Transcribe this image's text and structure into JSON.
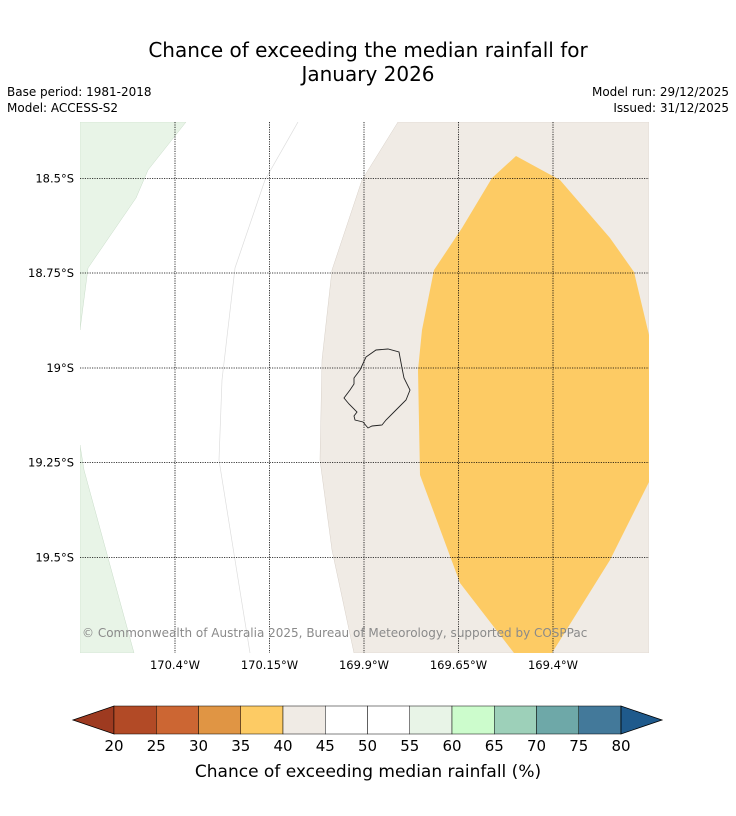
{
  "title_line1": "Chance of exceeding the median rainfall for",
  "title_line2": "January 2026",
  "base_period": "Base period: 1981-2018",
  "model": "Model: ACCESS-S2",
  "model_run": "Model run: 29/12/2025",
  "issued": "Issued: 31/12/2025",
  "copyright": "© Commonwealth of Australia 2025, Bureau of Meteorology, supported by COSPPac",
  "lat_labels": [
    "18.5°S",
    "18.75°S",
    "19°S",
    "19.25°S",
    "19.5°S"
  ],
  "lon_labels": [
    "170.4°W",
    "170.15°W",
    "169.9°W",
    "169.65°W",
    "169.4°W"
  ],
  "colorbar": {
    "title": "Chance of exceeding median rainfall (%)",
    "ticks": [
      "20",
      "25",
      "30",
      "35",
      "40",
      "45",
      "50",
      "55",
      "60",
      "65",
      "70",
      "75",
      "80"
    ],
    "colors": [
      "#9e3a20",
      "#b24a26",
      "#cc6633",
      "#e09544",
      "#fdcb64",
      "#f0ebe5",
      "#ffffff",
      "#ffffff",
      "#e8f4e7",
      "#ccfccc",
      "#9dd0b9",
      "#6ea8a8",
      "#43799a",
      "#1f5a8c"
    ]
  },
  "regions": {
    "band_40_45": "#f0ebe5",
    "band_35_40": "#fdcb64",
    "band_55_60": "#e8f4e7"
  }
}
